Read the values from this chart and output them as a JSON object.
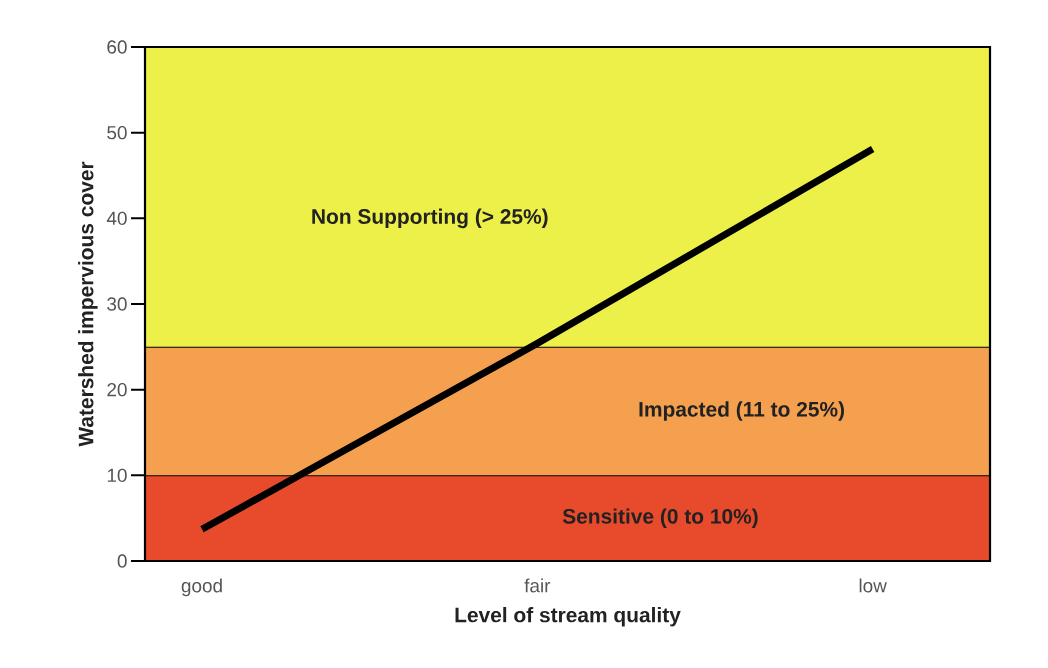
{
  "chart_data": {
    "type": "line",
    "xlabel": "Level of stream quality",
    "ylabel": "Watershed impervious cover",
    "categories": [
      "good",
      "fair",
      "low"
    ],
    "ylim": [
      0,
      60
    ],
    "yticks": [
      0,
      10,
      20,
      30,
      40,
      50,
      60
    ],
    "series": [
      {
        "color": "#000000",
        "values": [
          3.7,
          25.4,
          48.1
        ]
      }
    ],
    "bands": [
      {
        "axis": "y",
        "from": 0,
        "to": 10,
        "label": "Sensitive (0 to 10%)",
        "color": "#e84a2c"
      },
      {
        "axis": "y",
        "from": 10,
        "to": 25,
        "label": "Impacted (11 to 25%)",
        "color": "#f4a04f"
      },
      {
        "axis": "y",
        "from": 25,
        "to": 60,
        "label": "Non Supporting (> 25%)",
        "color": "#eef04a"
      }
    ],
    "marker": "none",
    "line_style": "solid"
  }
}
